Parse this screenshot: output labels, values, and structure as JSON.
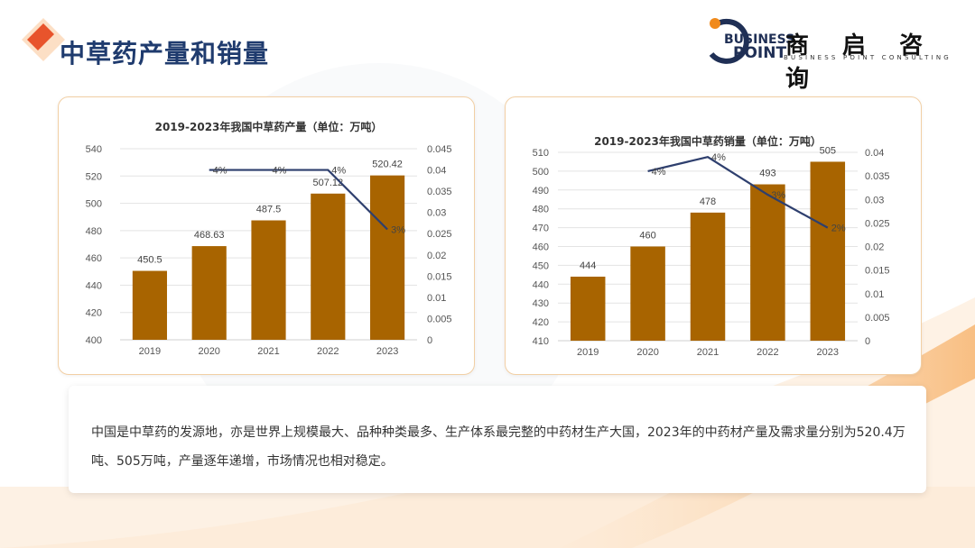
{
  "page": {
    "title": "中草药产量和销量",
    "logo_cn": "商 启 咨 询",
    "logo_en": "BUSINESS POINT CONSULTING",
    "logo_word1": "BUSINESS",
    "logo_word2": "POINT",
    "description": "中国是中草药的发源地，亦是世界上规模最大、品种种类最多、生产体系最完整的中药材生产大国，2023年的中药材产量及需求量分别为520.4万吨、505万吨，产量逐年递增，市场情况也相对稳定。",
    "accent_color": "#a86400",
    "line_color": "#2e3f6e"
  },
  "chart_data": [
    {
      "type": "bar",
      "title": "2019-2023年我国中草药产量（单位：万吨）",
      "categories": [
        "2019",
        "2020",
        "2021",
        "2022",
        "2023"
      ],
      "series": [
        {
          "type": "bar",
          "values": [
            450.5,
            468.63,
            487.5,
            507.12,
            520.42
          ],
          "labels": [
            "450.5",
            "468.63",
            "487.5",
            "507.12",
            "520.42"
          ]
        },
        {
          "type": "line",
          "axis": "right",
          "values": [
            null,
            0.04,
            0.04,
            0.04,
            0.026
          ],
          "labels": [
            "",
            "4%",
            "4%",
            "4%",
            "3%"
          ]
        }
      ],
      "ylim": [
        400,
        540
      ],
      "yticks": [
        "400",
        "420",
        "440",
        "460",
        "480",
        "500",
        "520",
        "540"
      ],
      "y2lim": [
        0,
        0.045
      ],
      "y2ticks": [
        "0",
        "0.005",
        "0.01",
        "0.015",
        "0.02",
        "0.025",
        "0.03",
        "0.035",
        "0.04",
        "0.045"
      ],
      "grid": true
    },
    {
      "type": "bar",
      "title": "2019-2023年我国中草药销量（单位：万吨）",
      "categories": [
        "2019",
        "2020",
        "2021",
        "2022",
        "2023"
      ],
      "series": [
        {
          "type": "bar",
          "values": [
            444,
            460,
            478,
            493,
            505
          ],
          "labels": [
            "444",
            "460",
            "478",
            "493",
            "505"
          ]
        },
        {
          "type": "line",
          "axis": "right",
          "values": [
            null,
            0.036,
            0.039,
            0.031,
            0.024
          ],
          "labels": [
            "",
            "4%",
            "4%",
            "3%",
            "2%"
          ]
        }
      ],
      "ylim": [
        410,
        510
      ],
      "yticks": [
        "410",
        "420",
        "430",
        "440",
        "450",
        "460",
        "470",
        "480",
        "490",
        "500",
        "510"
      ],
      "y2lim": [
        0,
        0.04
      ],
      "y2ticks": [
        "0",
        "0.005",
        "0.01",
        "0.015",
        "0.02",
        "0.025",
        "0.03",
        "0.035",
        "0.04"
      ],
      "grid": true
    }
  ]
}
